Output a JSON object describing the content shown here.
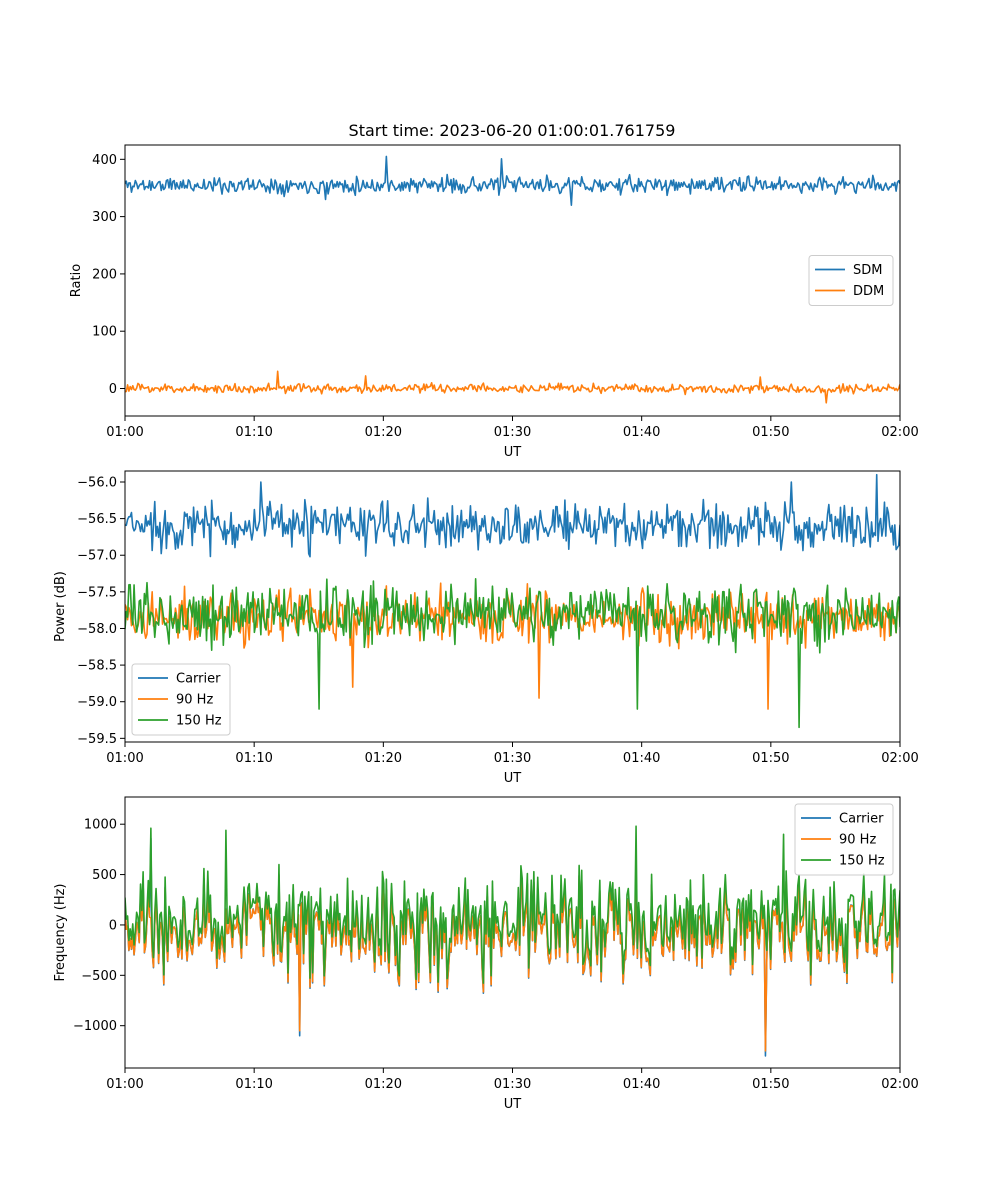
{
  "title": "Start time: 2023-06-20 01:00:01.761759",
  "colors": {
    "blue": "#1f77b4",
    "orange": "#ff7f0e",
    "green": "#2ca02c"
  },
  "chart_data": [
    {
      "type": "line",
      "xlabel": "UT",
      "ylabel": "Ratio",
      "xlim": [
        "01:00",
        "02:00"
      ],
      "xticks": [
        "01:00",
        "01:10",
        "01:20",
        "01:30",
        "01:40",
        "01:50",
        "02:00"
      ],
      "ylim": [
        -48,
        425
      ],
      "yticks": [
        0,
        100,
        200,
        300,
        400
      ],
      "ytick_labels": [
        "0",
        "100",
        "200",
        "300",
        "400"
      ],
      "legend_position": "center-right",
      "series": [
        {
          "name": "SDM",
          "color": "#1f77b4",
          "noise": {
            "base": 355,
            "amp": 14,
            "seed": 11,
            "spikes": [
              [
                0.338,
                405
              ],
              [
                0.485,
                401
              ],
              [
                0.258,
                330
              ],
              [
                0.576,
                320
              ]
            ]
          }
        },
        {
          "name": "DDM",
          "color": "#ff7f0e",
          "noise": {
            "base": 0,
            "amp": 8,
            "seed": 23,
            "spikes": [
              [
                0.197,
                30
              ],
              [
                0.31,
                22
              ],
              [
                0.905,
                -25
              ],
              [
                0.82,
                20
              ]
            ]
          }
        }
      ]
    },
    {
      "type": "line",
      "xlabel": "UT",
      "ylabel": "Power (dB)",
      "xlim": [
        "01:00",
        "02:00"
      ],
      "xticks": [
        "01:00",
        "01:10",
        "01:20",
        "01:30",
        "01:40",
        "01:50",
        "02:00"
      ],
      "ylim": [
        -59.55,
        -55.85
      ],
      "yticks": [
        -59.5,
        -59.0,
        -58.5,
        -58.0,
        -57.5,
        -57.0,
        -56.5,
        -56.0
      ],
      "ytick_labels": [
        "−59.5",
        "−59.0",
        "−58.5",
        "−58.0",
        "−57.5",
        "−57.0",
        "−56.5",
        "−56.0"
      ],
      "legend_position": "lower-left",
      "series": [
        {
          "name": "Carrier",
          "color": "#1f77b4",
          "noise": {
            "base": -56.6,
            "amp": 0.32,
            "seed": 37,
            "spikes": [
              [
                0.175,
                -56.0
              ],
              [
                0.97,
                -55.9
              ],
              [
                0.86,
                -56.0
              ]
            ]
          }
        },
        {
          "name": "90 Hz",
          "color": "#ff7f0e",
          "noise": {
            "base": -57.85,
            "amp": 0.36,
            "seed": 41,
            "spikes": [
              [
                0.534,
                -58.95
              ],
              [
                0.83,
                -59.1
              ],
              [
                0.293,
                -58.8
              ]
            ]
          }
        },
        {
          "name": "150 Hz",
          "color": "#2ca02c",
          "noise": {
            "base": -57.8,
            "amp": 0.38,
            "seed": 53,
            "spikes": [
              [
                0.87,
                -59.35
              ],
              [
                0.251,
                -59.1
              ],
              [
                0.661,
                -59.1
              ]
            ]
          }
        }
      ]
    },
    {
      "type": "line",
      "xlabel": "UT",
      "ylabel": "Frequency (Hz)",
      "xlim": [
        "01:00",
        "02:00"
      ],
      "xticks": [
        "01:00",
        "01:10",
        "01:20",
        "01:30",
        "01:40",
        "01:50",
        "02:00"
      ],
      "ylim": [
        -1420,
        1270
      ],
      "yticks": [
        -1000,
        -500,
        0,
        500,
        1000
      ],
      "ytick_labels": [
        "−1000",
        "−500",
        "0",
        "500",
        "1000"
      ],
      "legend_position": "upper-right",
      "series": [
        {
          "name": "Carrier",
          "color": "#1f77b4",
          "noise": {
            "base": -60,
            "amp": 480,
            "seed": 67,
            "spikes": [
              [
                0.827,
                -1300
              ],
              [
                0.225,
                -1100
              ],
              [
                0.033,
                860
              ]
            ]
          }
        },
        {
          "name": "90 Hz",
          "color": "#ff7f0e",
          "noise": {
            "base": -60,
            "amp": 470,
            "seed": 67,
            "spikes": [
              [
                0.827,
                -1250
              ],
              [
                0.225,
                -1050
              ]
            ]
          }
        },
        {
          "name": "150 Hz",
          "color": "#2ca02c",
          "noise": {
            "base": 40,
            "amp": 480,
            "seed": 67,
            "spikes": [
              [
                0.033,
                960
              ],
              [
                0.13,
                940
              ],
              [
                0.66,
                980
              ],
              [
                0.85,
                900
              ]
            ]
          }
        }
      ]
    }
  ]
}
